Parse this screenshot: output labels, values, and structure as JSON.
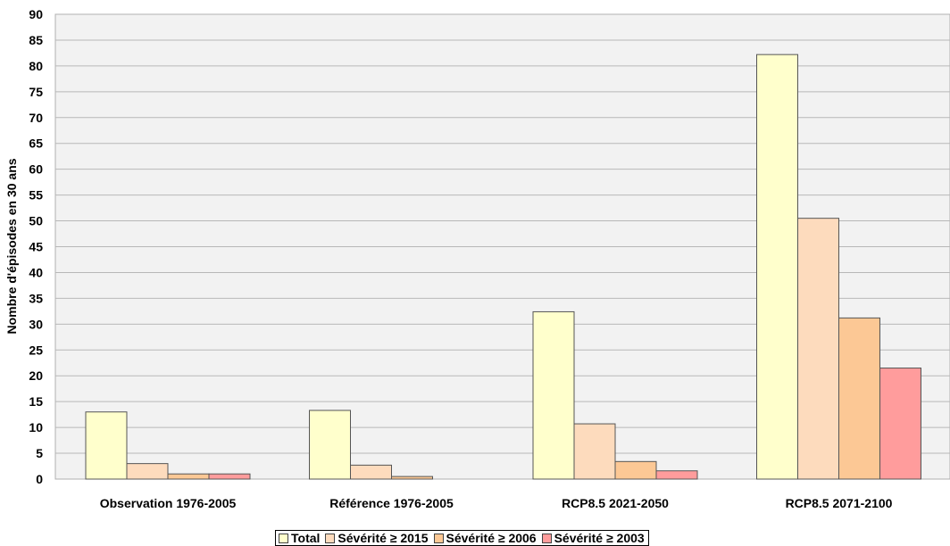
{
  "chart_data": {
    "type": "bar",
    "title": "",
    "xlabel": "",
    "ylabel": "Nombre d'épisodes en 30 ans",
    "ylim": [
      0,
      90
    ],
    "ytick_step": 5,
    "grid": true,
    "legend_position": "bottom",
    "categories": [
      "Observation 1976-2005",
      "Référence 1976-2005",
      "RCP8.5 2021-2050",
      "RCP8.5 2071-2100"
    ],
    "series": [
      {
        "name": "Total",
        "color": "#ffffcc",
        "values": [
          13,
          13.3,
          32.4,
          82.2
        ]
      },
      {
        "name": "Sévérité ≥ 2015",
        "color": "#fddbbd",
        "values": [
          3,
          2.7,
          10.7,
          50.5
        ]
      },
      {
        "name": "Sévérité ≥ 2006",
        "color": "#fcc895",
        "values": [
          1,
          0.5,
          3.4,
          31.2
        ]
      },
      {
        "name": "Sévérité ≥ 2003",
        "color": "#ff9c9c",
        "values": [
          1,
          0,
          1.6,
          21.5
        ]
      }
    ]
  }
}
